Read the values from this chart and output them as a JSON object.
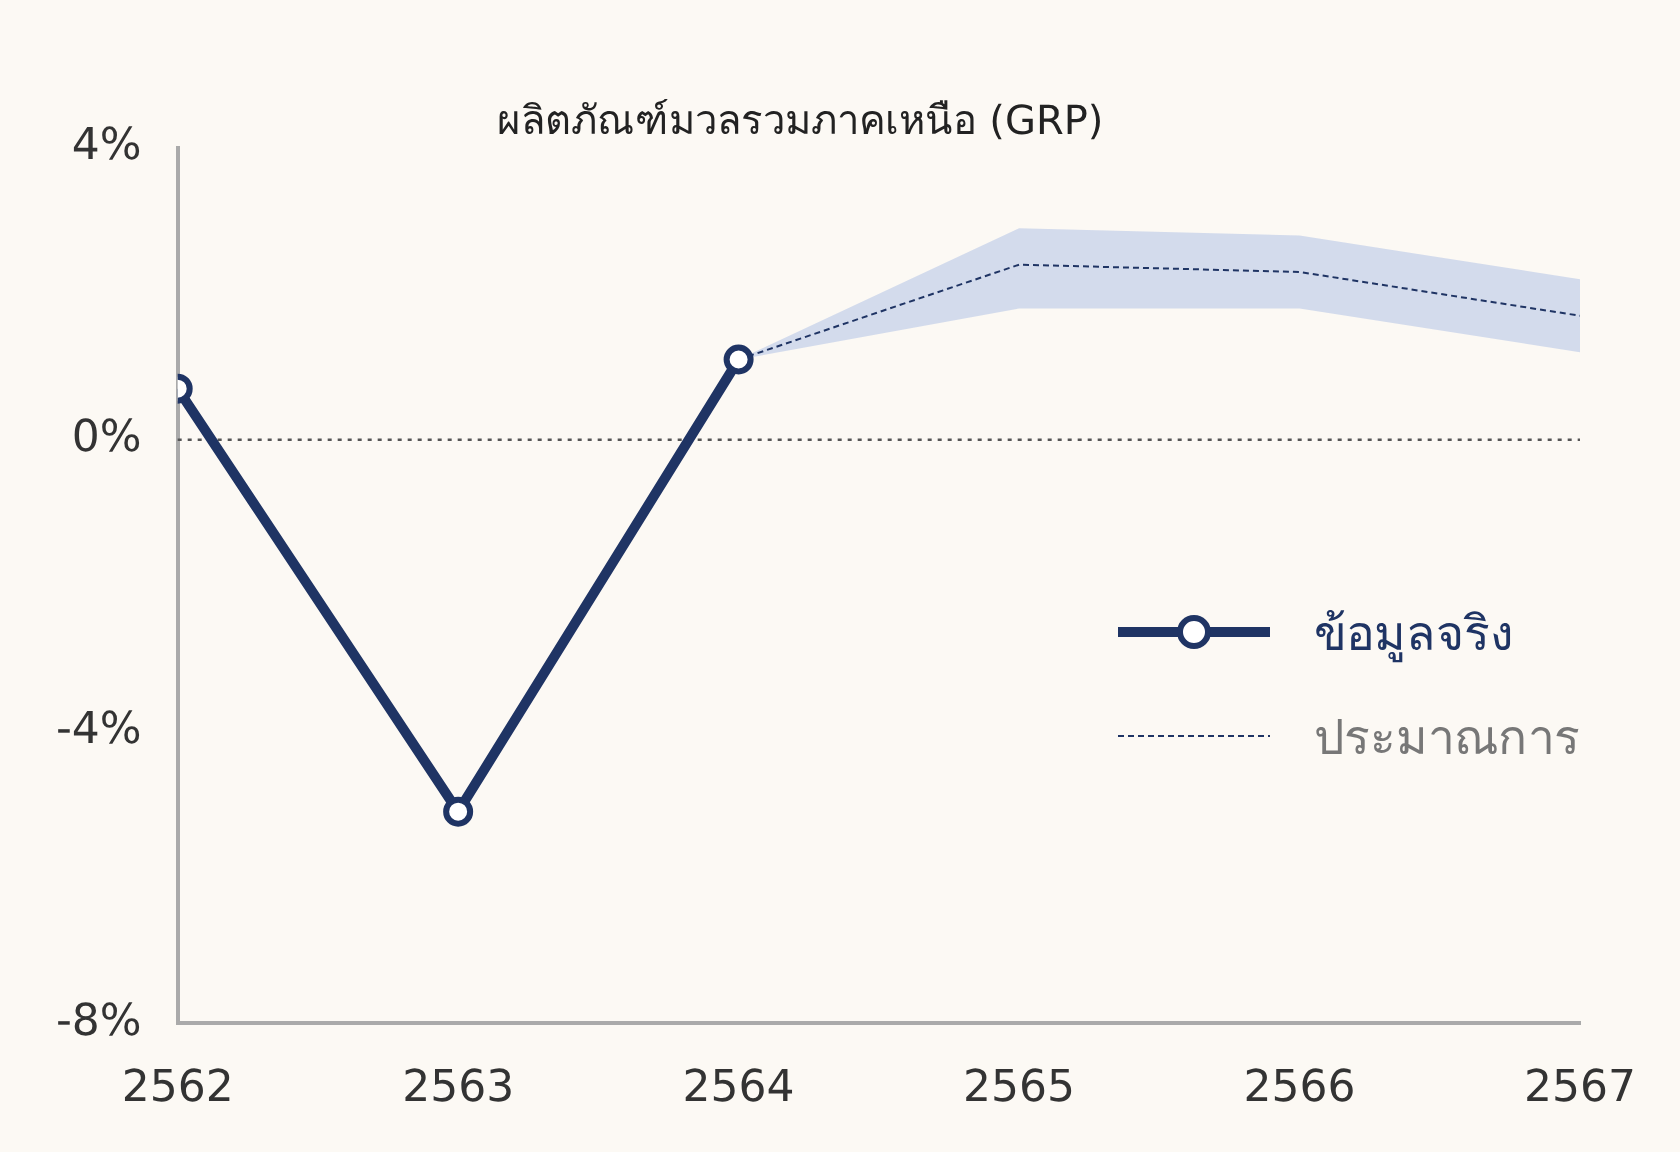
{
  "chart_data": {
    "type": "line",
    "title": "ผลิตภัณฑ์มวลรวมภาคเหนือ (GRP)",
    "xlim": [
      2562,
      2567
    ],
    "xticks": [
      2562,
      2563,
      2564,
      2565,
      2566,
      2567
    ],
    "ylim": [
      -8,
      4
    ],
    "yticks": [
      {
        "value": -8,
        "label": "-8%"
      },
      {
        "value": -4,
        "label": "-4%"
      },
      {
        "value": 0,
        "label": "0%"
      },
      {
        "value": 4,
        "label": "4%"
      }
    ],
    "grid": false,
    "legend": "right",
    "ref_lines": [
      {
        "axis": "y",
        "value": 0,
        "color": "#555555",
        "line_style": "dotted"
      }
    ],
    "series": [
      {
        "name": "ข้อมูลจริง",
        "color": "#1f3464",
        "x": [
          2562,
          2563,
          2564
        ],
        "values": [
          0.7,
          -5.1,
          1.1
        ],
        "marker": "circle",
        "line_style": "solid"
      },
      {
        "name": "ประมาณการ",
        "color": "#1f3464",
        "x": [
          2564,
          2565,
          2566,
          2567
        ],
        "values": [
          1.1,
          2.4,
          2.3,
          1.7
        ],
        "lower": [
          1.1,
          1.8,
          1.8,
          1.2
        ],
        "upper": [
          1.1,
          2.9,
          2.8,
          2.2
        ],
        "marker": "none",
        "line_style": "dashed"
      }
    ]
  }
}
